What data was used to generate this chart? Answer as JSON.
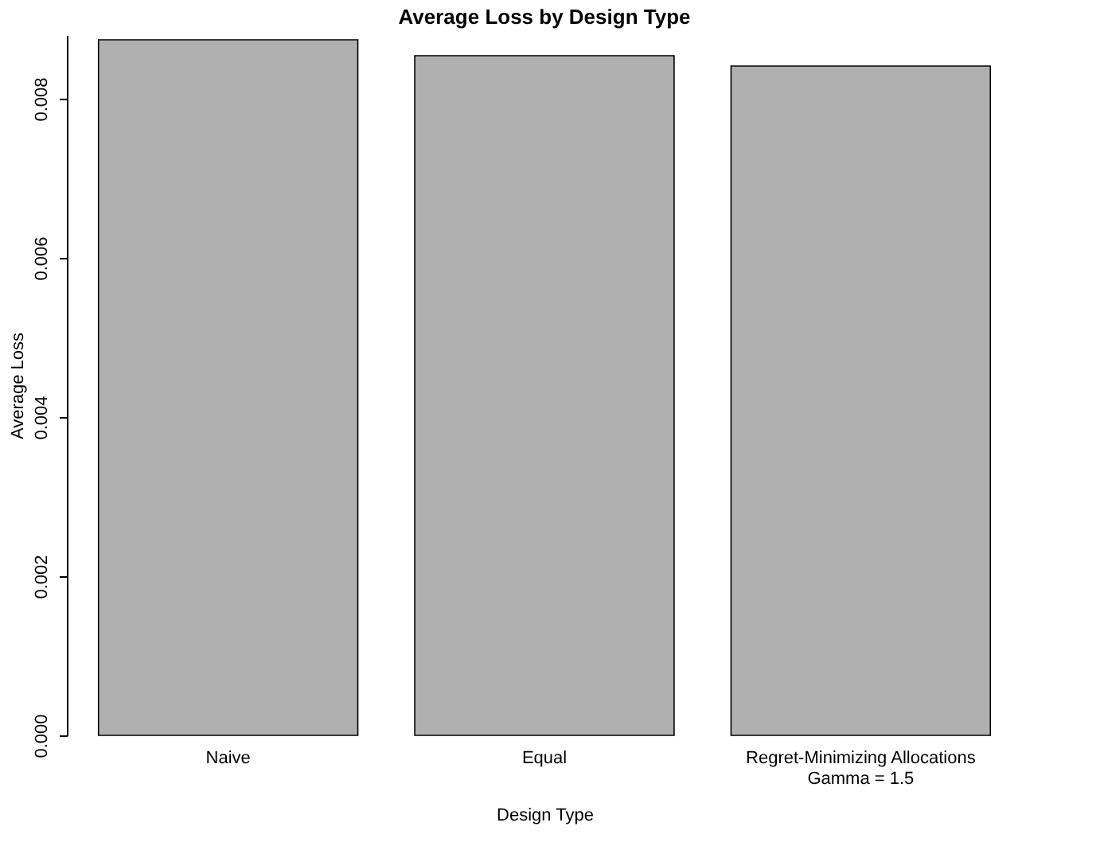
{
  "chart_data": {
    "type": "bar",
    "title": "Average Loss by Design Type",
    "xlabel": "Design Type",
    "ylabel": "Average Loss",
    "categories": [
      "Naive",
      "Equal",
      "Regret-Minimizing Allocations\nGamma =  1.5"
    ],
    "values": [
      0.00874,
      0.00854,
      0.00841
    ],
    "color": "#b0b0b0",
    "ylim": [
      0,
      0.0088
    ],
    "yticks": [
      {
        "value": 0,
        "label": "0.000"
      },
      {
        "value": 0.002,
        "label": "0.002"
      },
      {
        "value": 0.004,
        "label": "0.004"
      },
      {
        "value": 0.006,
        "label": "0.006"
      },
      {
        "value": 0.008,
        "label": "0.008"
      }
    ],
    "grid": false
  }
}
